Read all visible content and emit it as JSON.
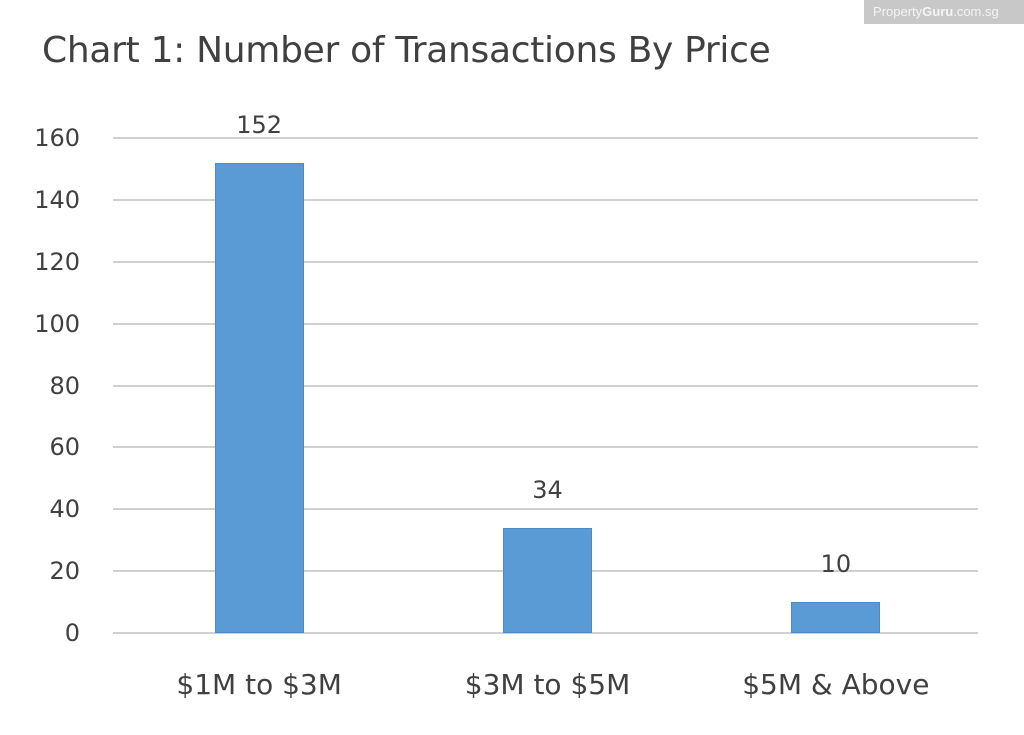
{
  "watermark": {
    "brand_light": "Property",
    "brand_bold": "Guru",
    "suffix": ".com.sg"
  },
  "chart_data": {
    "type": "bar",
    "title": "Chart 1: Number of Transactions By Price",
    "categories": [
      "$1M to $3M",
      "$3M to $5M",
      "$5M & Above"
    ],
    "values": [
      152,
      34,
      10
    ],
    "data_labels": [
      "152",
      "34",
      "10"
    ],
    "xlabel": "",
    "ylabel": "",
    "ylim": [
      0,
      160
    ],
    "yticks": [
      "0",
      "20",
      "40",
      "60",
      "80",
      "100",
      "120",
      "140",
      "160"
    ],
    "grid": true,
    "legend": "none",
    "bar_color": "#5b9bd5"
  }
}
